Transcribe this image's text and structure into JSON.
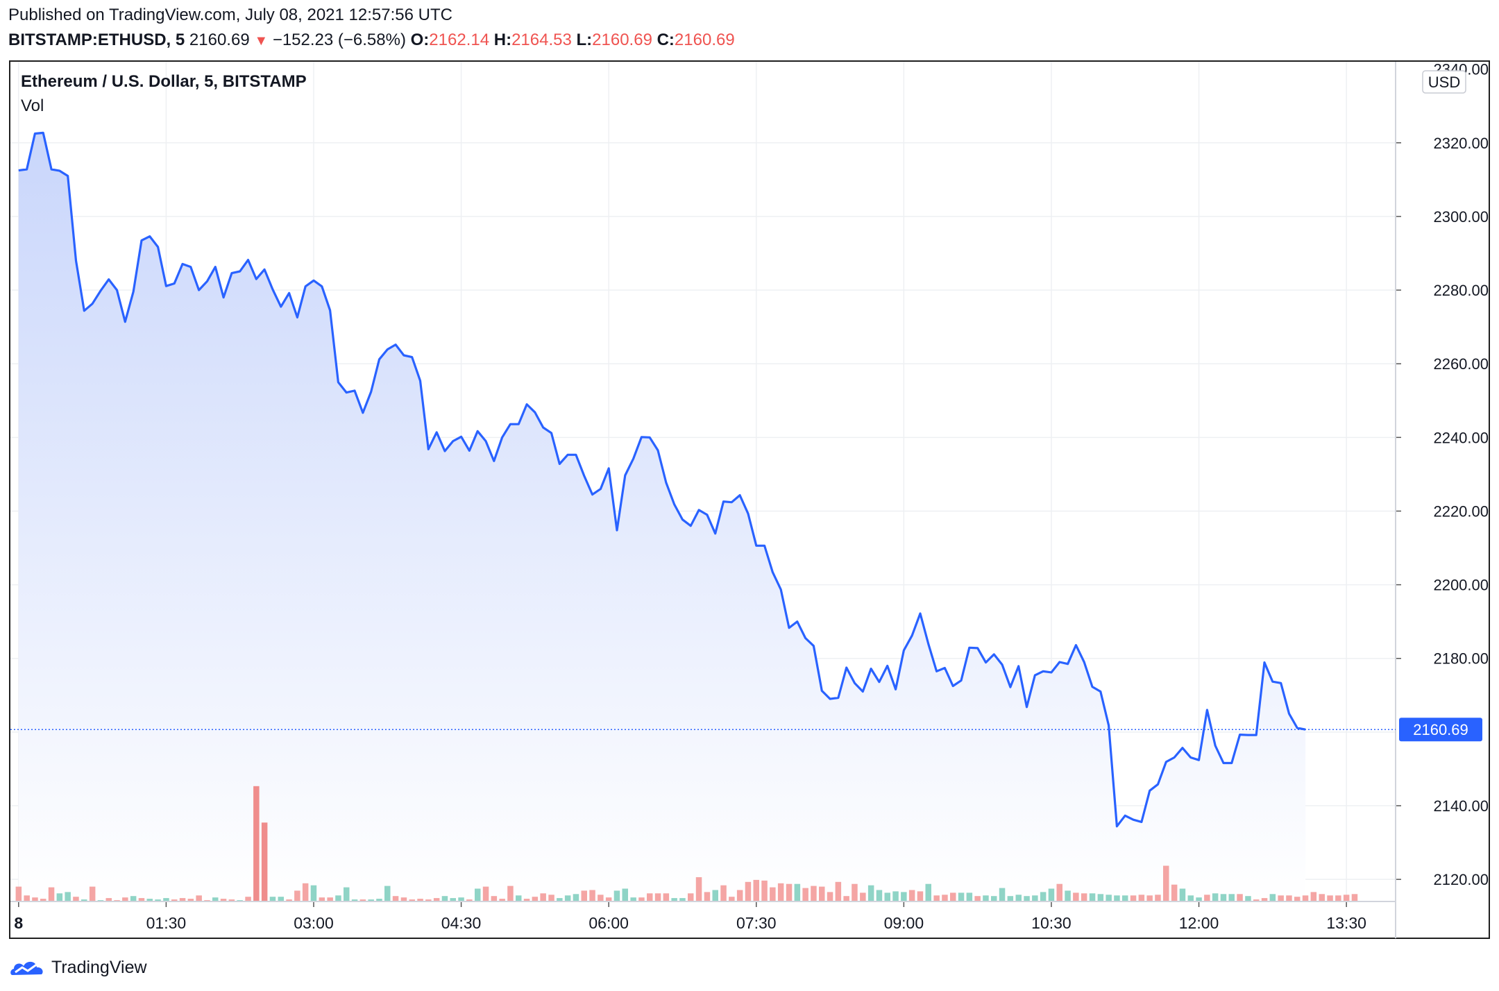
{
  "header": {
    "published": "Published on TradingView.com, July 08, 2021 12:57:56 UTC",
    "symbol": "BITSTAMP:ETHUSD, 5",
    "last": "2160.69",
    "change": "−152.23 (−6.58%)",
    "change_arrow": "▼",
    "o_label": "O:",
    "o_value": "2162.14",
    "h_label": "H:",
    "h_value": "2164.53",
    "l_label": "L:",
    "l_value": "2160.69",
    "c_label": "C:",
    "c_value": "2160.69"
  },
  "legend": {
    "title": "Ethereum / U.S. Dollar, 5, BITSTAMP",
    "volume": "Vol"
  },
  "footer": {
    "brand": "TradingView"
  },
  "colors": {
    "line": "#2962ff",
    "fill_top": "#c9d6fb",
    "vol_up": "#8fd4c6",
    "vol_down": "#f4a5a4",
    "vol_spike_down": "#ef8d8c",
    "grid": "#eef0f3",
    "price_label_bg": "#2962ff",
    "down": "#ef5350"
  },
  "chart_data": {
    "type": "line",
    "currency": "USD",
    "last_price": 2160.69,
    "ylim": [
      2114,
      2342
    ],
    "y_ticks": [
      2320,
      2300,
      2280,
      2260,
      2240,
      2220,
      2200,
      2180,
      2160,
      2140,
      2120
    ],
    "y_tick_labels": [
      "2320.00",
      "2300.00",
      "2280.00",
      "2260.00",
      "2240.00",
      "2220.00",
      "2200.00",
      "2180.00",
      "2140.00",
      "2120.00"
    ],
    "top_tick_partial": "2340.00",
    "x_range_minutes": [
      -5,
      840
    ],
    "x_ticks": [
      {
        "minute": 0,
        "label": "8"
      },
      {
        "minute": 90,
        "label": "01:30"
      },
      {
        "minute": 180,
        "label": "03:00"
      },
      {
        "minute": 270,
        "label": "04:30"
      },
      {
        "minute": 360,
        "label": "06:00"
      },
      {
        "minute": 450,
        "label": "07:30"
      },
      {
        "minute": 540,
        "label": "09:00"
      },
      {
        "minute": 630,
        "label": "10:30"
      },
      {
        "minute": 720,
        "label": "12:00"
      },
      {
        "minute": 810,
        "label": "13:30"
      }
    ],
    "series": [
      {
        "values": [
          2312.5,
          2312.8,
          2322.5,
          2322.7,
          2312.8,
          2312.4,
          2311.0,
          2288.0,
          2274.4,
          2276.3,
          2279.8,
          2282.9,
          2280.0,
          2271.4,
          2279.6,
          2293.5,
          2294.6,
          2291.7,
          2281.1,
          2281.8,
          2287.1,
          2286.3,
          2280.0,
          2282.4,
          2286.3,
          2278.0,
          2284.6,
          2285.1,
          2288.2,
          2283.0,
          2285.6,
          2280.2,
          2275.5,
          2279.2,
          2272.6,
          2281.0,
          2282.6,
          2281.0,
          2274.5,
          2255.0,
          2252.2,
          2252.7,
          2246.7,
          2252.4,
          2261.2,
          2263.9,
          2265.2,
          2262.3,
          2261.8,
          2255.4,
          2236.8,
          2241.4,
          2236.3,
          2239.0,
          2240.2,
          2236.4,
          2241.7,
          2239.0,
          2233.6,
          2240.0,
          2243.6,
          2243.6,
          2249.0,
          2246.8,
          2242.7,
          2241.2,
          2232.8,
          2235.3,
          2235.3,
          2229.6,
          2224.5,
          2226.0,
          2231.6,
          2214.8,
          2229.7,
          2234.2,
          2240.1,
          2240.0,
          2236.5,
          2227.7,
          2221.8,
          2217.7,
          2216.0,
          2220.3,
          2219.0,
          2213.9,
          2222.6,
          2222.4,
          2224.3,
          2219.3,
          2210.6,
          2210.6,
          2203.4,
          2198.7,
          2188.3,
          2190.0,
          2185.5,
          2183.4,
          2171.2,
          2169.0,
          2169.3,
          2177.5,
          2173.3,
          2171.0,
          2177.2,
          2173.6,
          2178.0,
          2171.6,
          2182.2,
          2186.2,
          2192.2,
          2183.9,
          2176.5,
          2177.4,
          2172.5,
          2174.0,
          2182.9,
          2182.8,
          2178.9,
          2181.1,
          2178.3,
          2172.2,
          2177.9,
          2166.8,
          2175.4,
          2176.5,
          2176.2,
          2179.0,
          2178.5,
          2183.6,
          2179.0,
          2172.3,
          2171.0,
          2161.8,
          2134.4,
          2137.3,
          2136.2,
          2135.6,
          2144.1,
          2145.8,
          2151.9,
          2153.1,
          2155.7,
          2153.1,
          2152.4,
          2166.0,
          2156.3,
          2151.6,
          2151.6,
          2159.3,
          2159.2,
          2159.2,
          2178.9,
          2173.7,
          2173.3,
          2165.0,
          2161.1,
          2160.69
        ]
      },
      {
        "name": "Vol",
        "values": [
          22,
          9,
          6,
          4,
          21,
          12,
          14,
          7,
          3,
          22,
          2,
          5,
          2,
          6,
          8,
          5,
          4,
          3,
          5,
          3,
          5,
          4,
          9,
          2,
          6,
          4,
          3,
          2,
          7,
          171,
          117,
          7,
          7,
          3,
          16,
          27,
          24,
          6,
          6,
          9,
          21,
          3,
          3,
          3,
          4,
          23,
          8,
          6,
          3,
          4,
          3,
          5,
          8,
          5,
          6,
          3,
          19,
          22,
          8,
          4,
          23,
          9,
          4,
          7,
          12,
          10,
          5,
          9,
          11,
          16,
          17,
          10,
          6,
          16,
          19,
          6,
          6,
          12,
          12,
          12,
          5,
          5,
          12,
          36,
          14,
          17,
          24,
          7,
          17,
          29,
          32,
          31,
          21,
          27,
          26,
          26,
          20,
          23,
          22,
          14,
          29,
          8,
          26,
          13,
          24,
          17,
          13,
          15,
          14,
          17,
          15,
          26,
          9,
          10,
          13,
          13,
          13,
          8,
          9,
          8,
          20,
          8,
          10,
          8,
          9,
          14,
          19,
          26,
          16,
          13,
          12,
          12,
          11,
          10,
          9,
          9,
          9,
          10,
          9,
          10,
          53,
          25,
          19,
          9,
          6,
          10,
          12,
          11,
          11,
          11,
          8,
          3,
          5,
          11,
          9,
          9,
          7,
          9,
          14,
          11,
          9,
          9,
          10,
          11
        ]
      }
    ],
    "series_direction": "ddddduudududdduduuudddddudduddduudddudduuuduuudddddduuududdddudddduuudddduuudddduudddudddddddddudddddddduuuuudduddduuduuuuuuuuududduuuuudddddduuuduuududdudddd"
  }
}
